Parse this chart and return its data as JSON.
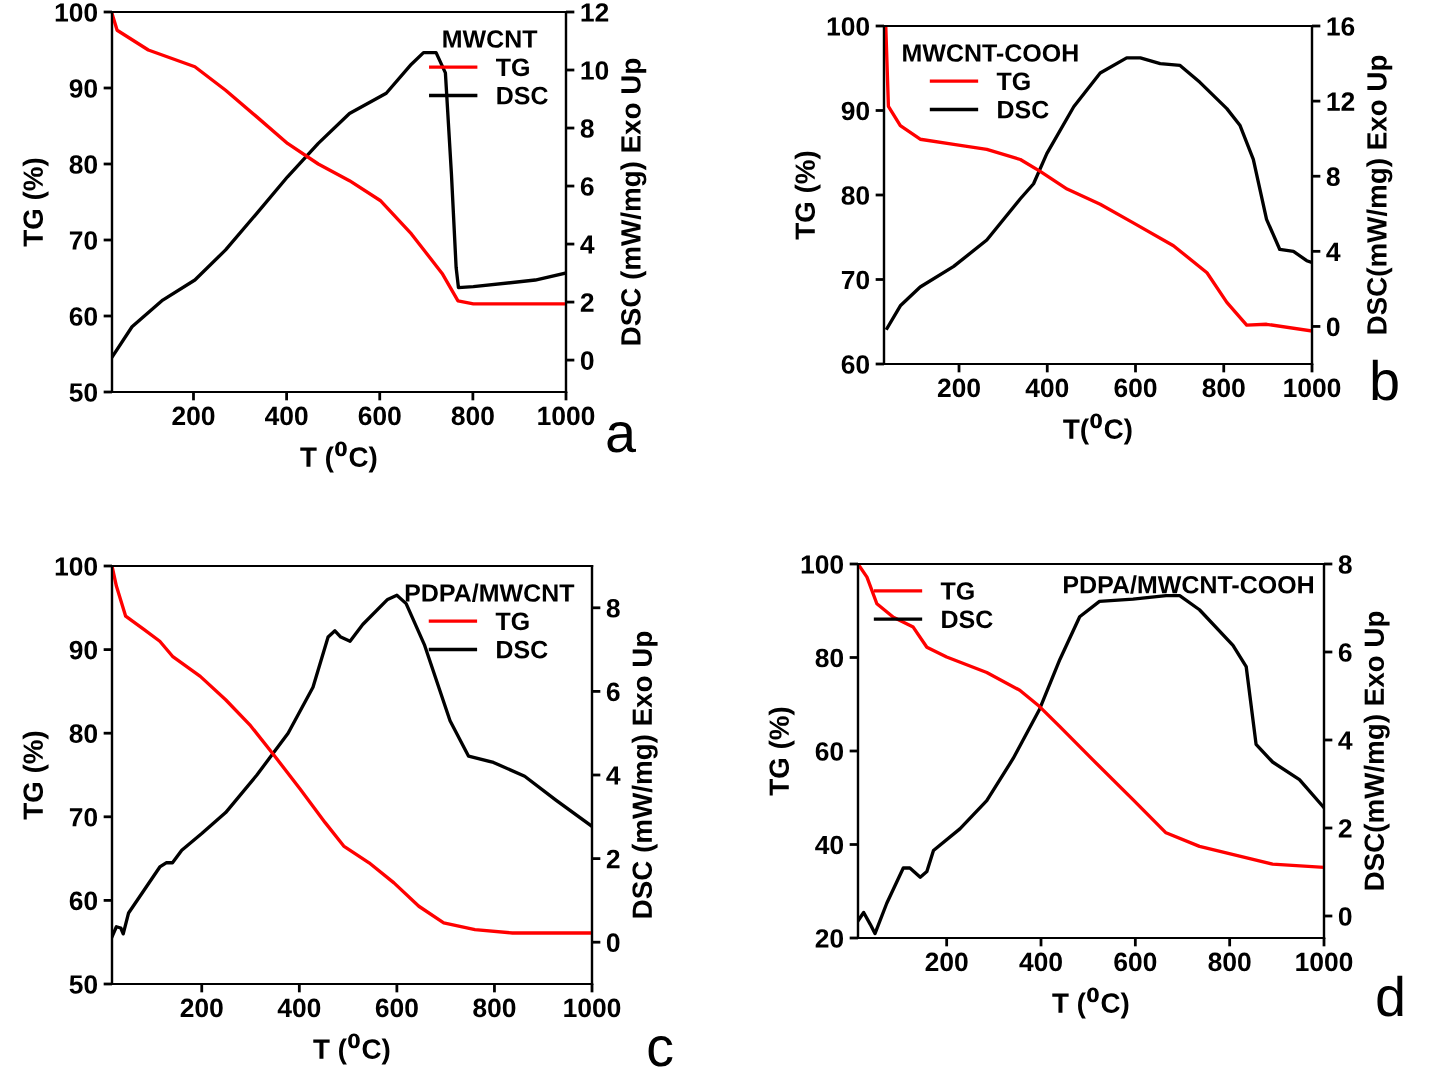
{
  "chart_data": [
    {
      "type": "line",
      "title": "a",
      "legend_title": "MWCNT",
      "xlabel": "T ($^{0}$C)",
      "ylabel": "TG (%)",
      "y2label": "DSC (mW/mg) Exo Up",
      "xlim": [
        25,
        1000
      ],
      "xticks": [
        200,
        400,
        600,
        800,
        1000
      ],
      "ylim": [
        50,
        100
      ],
      "yticks": [
        50,
        60,
        70,
        80,
        90,
        100
      ],
      "y2lim": [
        -1.1,
        12
      ],
      "y2ticks": [
        0,
        2,
        4,
        6,
        8,
        10,
        12
      ],
      "legend": "top right",
      "grid": false,
      "series": [
        {
          "name": "TG",
          "color": "#ff0000",
          "x": [
            25,
            36,
            103,
            203,
            269,
            336,
            402,
            468,
            535,
            601,
            668,
            734,
            768,
            801,
            1000
          ],
          "values": [
            99.8,
            97.6,
            95,
            92.8,
            89.7,
            86.2,
            82.7,
            80,
            77.8,
            75.2,
            70.8,
            65.6,
            62,
            61.6,
            61.6
          ]
        },
        {
          "name": "DSC",
          "color": "#000000",
          "axis": "y2",
          "x": [
            25,
            68,
            134,
            203,
            269,
            336,
            402,
            468,
            535,
            614,
            668,
            694,
            721,
            741,
            754,
            764,
            769,
            801,
            934,
            1000
          ],
          "values": [
            0.1,
            1.15,
            2.07,
            2.76,
            3.8,
            5.06,
            6.32,
            7.47,
            8.5,
            9.2,
            10.2,
            10.6,
            10.6,
            9.9,
            6.4,
            3.2,
            2.5,
            2.53,
            2.76,
            3.0
          ]
        }
      ]
    },
    {
      "type": "line",
      "title": "b",
      "legend_title": "MWCNT-COOH",
      "xlabel": "T($^{0}$C)",
      "ylabel": "TG (%)",
      "y2label": "DSC(mW/mg) Exo Up",
      "xlim": [
        30,
        1000
      ],
      "xticks": [
        200,
        400,
        600,
        800,
        1000
      ],
      "ylim": [
        60,
        100
      ],
      "yticks": [
        60,
        70,
        80,
        90,
        100
      ],
      "y2lim": [
        -2,
        16
      ],
      "y2ticks": [
        0,
        4,
        8,
        12,
        16
      ],
      "legend": "top left",
      "grid": false,
      "series": [
        {
          "name": "TG",
          "color": "#ff0000",
          "x": [
            34,
            40,
            67,
            112,
            188,
            263,
            339,
            384,
            445,
            520,
            595,
            686,
            762,
            807,
            852,
            897,
            1000
          ],
          "values": [
            100,
            90.5,
            88.2,
            86.6,
            86,
            85.4,
            84.2,
            82.8,
            80.7,
            78.9,
            76.7,
            74,
            70.8,
            67.3,
            64.6,
            64.7,
            63.9
          ]
        },
        {
          "name": "DSC",
          "color": "#000000",
          "axis": "y2",
          "x": [
            37,
            67,
            112,
            188,
            263,
            339,
            369,
            399,
            460,
            520,
            580,
            611,
            656,
            701,
            746,
            807,
            837,
            867,
            897,
            927,
            958,
            988,
            1000
          ],
          "values": [
            -0.1,
            1.1,
            2.1,
            3.2,
            4.6,
            6.8,
            7.6,
            9.2,
            11.7,
            13.5,
            14.3,
            14.3,
            14.0,
            13.9,
            13.0,
            11.6,
            10.7,
            8.9,
            5.7,
            4.1,
            4.0,
            3.5,
            3.4
          ]
        }
      ]
    },
    {
      "type": "line",
      "title": "c",
      "legend_title": "PDPA/MWCNT",
      "xlabel": "T ($^{0}$C)",
      "ylabel": "TG (%)",
      "y2label": "DSC (mW/mg) Exo Up",
      "xlim": [
        16,
        1000
      ],
      "xticks": [
        200,
        400,
        600,
        800,
        1000
      ],
      "ylim": [
        50,
        100
      ],
      "yticks": [
        50,
        60,
        70,
        80,
        90,
        100
      ],
      "y2lim": [
        -1,
        9
      ],
      "y2ticks": [
        0,
        2,
        4,
        6,
        8
      ],
      "legend": "top right",
      "grid": false,
      "series": [
        {
          "name": "TG",
          "color": "#ff0000",
          "x": [
            16,
            25,
            44,
            82,
            114,
            140,
            197,
            249,
            300,
            349,
            402,
            453,
            491,
            543,
            594,
            645,
            696,
            760,
            837,
            1000
          ],
          "values": [
            100,
            97.6,
            94,
            92.4,
            91,
            89.2,
            86.8,
            84,
            80.9,
            77.3,
            73.3,
            69.3,
            66.5,
            64.5,
            62.1,
            59.3,
            57.3,
            56.5,
            56.1,
            56.1
          ]
        },
        {
          "name": "DSC",
          "color": "#000000",
          "axis": "y2",
          "x": [
            16,
            25,
            34,
            39,
            50,
            82,
            114,
            127,
            140,
            159,
            200,
            249,
            313,
            377,
            428,
            459,
            473,
            485,
            504,
            530,
            581,
            600,
            619,
            657,
            709,
            747,
            798,
            862,
            926,
            1000
          ],
          "values": [
            0.13,
            0.37,
            0.34,
            0.2,
            0.7,
            1.25,
            1.8,
            1.9,
            1.9,
            2.2,
            2.6,
            3.1,
            4.0,
            5.0,
            6.1,
            7.3,
            7.45,
            7.3,
            7.2,
            7.6,
            8.2,
            8.3,
            8.1,
            7.1,
            5.3,
            4.45,
            4.3,
            3.97,
            3.4,
            2.77
          ]
        }
      ]
    },
    {
      "type": "line",
      "title": "d",
      "annotations": [
        "PDPA/MWCNT-COOH"
      ],
      "xlabel": "T ($^{0}$C)",
      "ylabel": "TG (%)",
      "y2label": "DSC(mW/mg) Exo Up",
      "xlim": [
        12,
        1000
      ],
      "xticks": [
        200,
        400,
        600,
        800,
        1000
      ],
      "ylim": [
        20,
        100
      ],
      "yticks": [
        20,
        40,
        60,
        80,
        100
      ],
      "y2lim": [
        -0.5,
        8
      ],
      "y2ticks": [
        0,
        2,
        4,
        6,
        8
      ],
      "legend": "top left",
      "grid": false,
      "series": [
        {
          "name": "TG",
          "color": "#ff0000",
          "x": [
            12,
            31,
            52,
            87,
            129,
            158,
            200,
            285,
            355,
            397,
            440,
            510,
            595,
            665,
            736,
            821,
            891,
            1000
          ],
          "values": [
            100,
            97.2,
            91.5,
            88.6,
            86.5,
            82.2,
            80.1,
            76.8,
            73,
            69.5,
            65.2,
            58.1,
            49.6,
            42.5,
            39.6,
            37.5,
            35.8,
            35.1
          ]
        },
        {
          "name": "DSC",
          "color": "#000000",
          "axis": "y2",
          "x": [
            12,
            24,
            38,
            48,
            73,
            108,
            122,
            144,
            158,
            172,
            228,
            285,
            341,
            397,
            440,
            482,
            524,
            595,
            665,
            694,
            736,
            807,
            835,
            856,
            891,
            948,
            1000
          ],
          "values": [
            -0.11,
            0.08,
            -0.19,
            -0.4,
            0.29,
            1.09,
            1.09,
            0.88,
            1.01,
            1.49,
            1.98,
            2.62,
            3.58,
            4.7,
            5.83,
            6.8,
            7.15,
            7.2,
            7.28,
            7.28,
            6.96,
            6.15,
            5.67,
            3.9,
            3.5,
            3.1,
            2.46
          ]
        }
      ]
    }
  ]
}
